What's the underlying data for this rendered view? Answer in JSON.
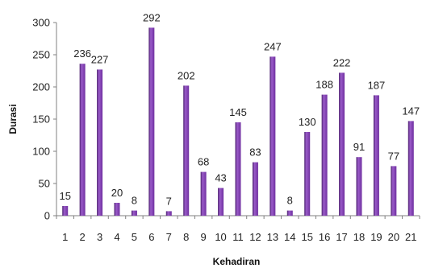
{
  "chart_data": {
    "type": "bar",
    "title": "",
    "xlabel": "Kehadiran",
    "ylabel": "Durasi",
    "categories": [
      "1",
      "2",
      "3",
      "4",
      "5",
      "6",
      "7",
      "8",
      "9",
      "10",
      "11",
      "12",
      "13",
      "14",
      "15",
      "16",
      "17",
      "18",
      "19",
      "20",
      "21"
    ],
    "values": [
      15,
      236,
      227,
      20,
      8,
      292,
      7,
      202,
      68,
      43,
      145,
      83,
      247,
      8,
      130,
      188,
      222,
      91,
      187,
      77,
      147
    ],
    "ylim": [
      0,
      300
    ],
    "yticks": [
      0,
      50,
      100,
      150,
      200,
      250,
      300
    ],
    "grid": false,
    "legend": "none",
    "data_labels": true,
    "colors": {
      "bar_fill": "#7030A0",
      "bar_highlight": "#9A5BC9",
      "bar_shadow": "#4B1F6E"
    }
  }
}
